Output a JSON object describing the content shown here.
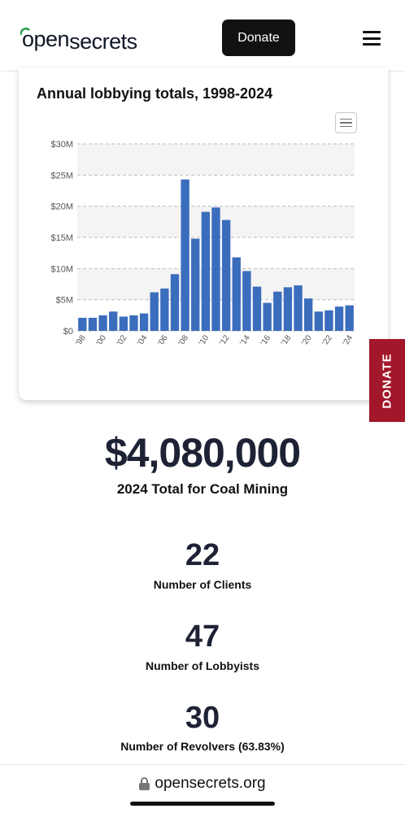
{
  "header": {
    "logo_open": "open",
    "logo_secrets": "secrets",
    "donate_label": "Donate"
  },
  "side_tab": {
    "label": "DONATE"
  },
  "chart_data": {
    "type": "bar",
    "title": "Annual lobbying totals, 1998-2024",
    "xlabel": "",
    "ylabel": "",
    "categories": [
      "1998",
      "1999",
      "2000",
      "2001",
      "2002",
      "2003",
      "2004",
      "2005",
      "2006",
      "2007",
      "2008",
      "2009",
      "2010",
      "2011",
      "2012",
      "2013",
      "2014",
      "2015",
      "2016",
      "2017",
      "2018",
      "2019",
      "2020",
      "2021",
      "2022",
      "2023",
      "2024"
    ],
    "tick_labels": [
      "'98",
      "'00",
      "'02",
      "'04",
      "'06",
      "'08",
      "'10",
      "'12",
      "'14",
      "'16",
      "'18",
      "'20",
      "'22",
      "'24"
    ],
    "values": [
      2.1,
      2.1,
      2.5,
      3.1,
      2.3,
      2.5,
      2.8,
      6.2,
      6.8,
      9.1,
      24.3,
      14.8,
      19.1,
      19.8,
      17.8,
      11.8,
      9.6,
      7.1,
      4.5,
      6.3,
      7.0,
      7.3,
      5.2,
      3.1,
      3.3,
      3.9,
      4.1
    ],
    "units": "$M",
    "ylim": [
      0,
      30
    ],
    "yticks": [
      "$0",
      "$5M",
      "$10M",
      "$15M",
      "$20M",
      "$25M",
      "$30M"
    ],
    "grid": true,
    "color": "#3b6dbd"
  },
  "stats": {
    "total_value": "$4,080,000",
    "total_label": "2024 Total for Coal Mining",
    "clients_value": "22",
    "clients_label": "Number of Clients",
    "lobbyists_value": "47",
    "lobbyists_label": "Number of Lobbyists",
    "revolvers_value": "30",
    "revolvers_label": "Number of Revolvers (63.83%)"
  },
  "browser": {
    "url": "opensecrets.org"
  }
}
